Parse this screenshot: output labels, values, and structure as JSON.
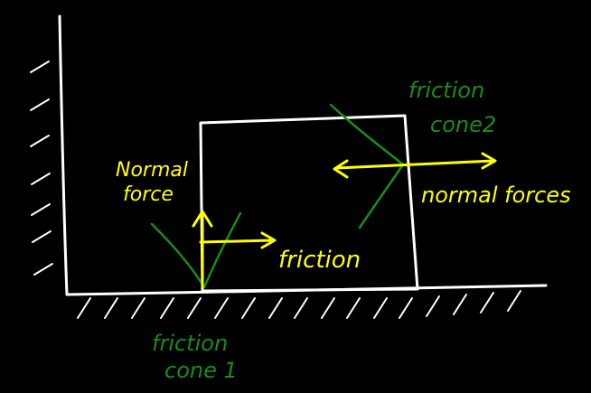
{
  "labels": {
    "normal_force_line1": "Normal",
    "normal_force_line2": "force",
    "friction": "friction",
    "normal_forces": "normal forces",
    "friction_cone1_line1": "friction",
    "friction_cone1_line2": "cone 1",
    "friction_cone2_line1": "friction",
    "friction_cone2_line2": "cone2"
  },
  "colors": {
    "background": "#000000",
    "structure": "#ffffff",
    "force_arrows": "#ffff00",
    "friction_cones": "#1a8c1a"
  }
}
